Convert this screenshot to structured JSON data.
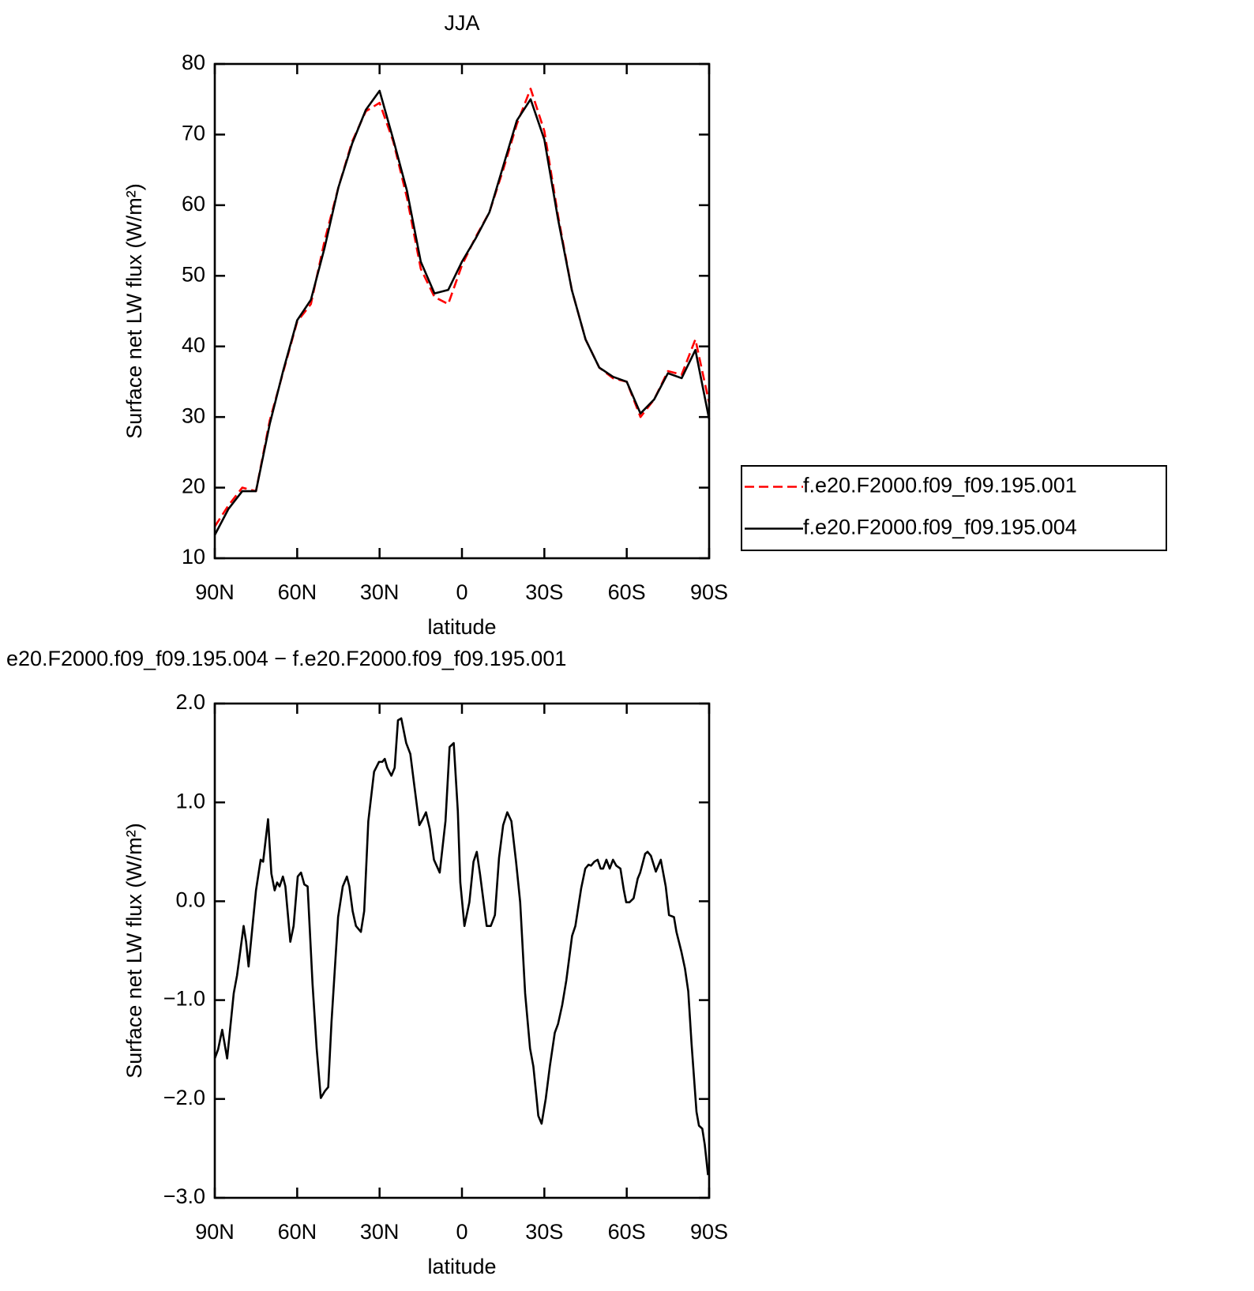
{
  "chart_data": [
    {
      "type": "line",
      "title": "JJA",
      "xlabel": "latitude",
      "ylabel": "Surface net LW flux (W/m²)",
      "x": [
        90,
        85,
        80,
        75,
        70,
        65,
        60,
        55,
        50,
        45,
        40,
        35,
        30,
        25,
        20,
        15,
        10,
        5,
        0,
        -5,
        -10,
        -15,
        -20,
        -25,
        -30,
        -35,
        -40,
        -45,
        -50,
        -55,
        -60,
        -65,
        -70,
        -75,
        -80,
        -85,
        -90
      ],
      "series": [
        {
          "name": "f.e20.F2000.f09_f09.195.001",
          "color": "#ff0000",
          "dashed": true,
          "values": [
            14.5,
            17.5,
            20,
            19.5,
            29.5,
            36.5,
            43.5,
            46,
            55,
            62.5,
            69,
            73.3,
            74.5,
            69,
            61,
            51,
            47,
            46,
            51.5,
            55.5,
            59,
            65,
            71.5,
            76.5,
            70.5,
            58.5,
            48,
            41,
            37,
            35.5,
            35,
            30,
            32.5,
            36.5,
            36,
            41,
            32
          ]
        },
        {
          "name": "f.e20.F2000.f09_f09.195.004",
          "color": "#000000",
          "dashed": false,
          "values": [
            13.3,
            17,
            19.5,
            19.5,
            29,
            36.7,
            43.7,
            46.6,
            54,
            62.5,
            68.7,
            73.5,
            76.2,
            69.3,
            62,
            52,
            47.5,
            48,
            52,
            55.3,
            59,
            65.5,
            72,
            75,
            69.3,
            58,
            48,
            41,
            37,
            35.7,
            35,
            30.5,
            32.5,
            36.2,
            35.5,
            39.5,
            29.7
          ]
        }
      ],
      "xlim": [
        90,
        -90
      ],
      "xticks": [
        {
          "value": 90,
          "label": "90N"
        },
        {
          "value": 60,
          "label": "60N"
        },
        {
          "value": 30,
          "label": "30N"
        },
        0,
        {
          "value": -30,
          "label": "30S"
        },
        {
          "value": -60,
          "label": "60S"
        },
        {
          "value": -90,
          "label": "90S"
        }
      ],
      "ylim": [
        10,
        80
      ],
      "yticks": [
        10,
        20,
        30,
        40,
        50,
        60,
        70,
        80
      ],
      "legend": "right"
    },
    {
      "type": "line",
      "title": "e20.F2000.f09_f09.195.004 − f.e20.F2000.f09_f09.195.001",
      "xlabel": "latitude",
      "ylabel": "Surface net LW flux (W/m²)",
      "color": "#000000",
      "x": [
        90,
        88.8,
        87.3,
        85.5,
        83.1,
        81.9,
        79.5,
        78.6,
        77.7,
        75,
        73.3,
        72.4,
        70.6,
        69.4,
        68.2,
        67.3,
        66.4,
        65.2,
        64.3,
        62.5,
        61.3,
        59.8,
        58.6,
        57.4,
        56.2,
        54.4,
        52.9,
        51.4,
        49.9,
        48.7,
        47.5,
        45.1,
        43.4,
        41.9,
        41,
        39.8,
        38.6,
        36.8,
        35.6,
        34.1,
        32,
        30.2,
        29,
        28.1,
        27.2,
        25.7,
        24.5,
        23.3,
        22.1,
        20.3,
        18.8,
        17.3,
        15.5,
        14.3,
        13.1,
        11.7,
        10.2,
        8.1,
        6,
        4.5,
        3,
        1.5,
        0.6,
        -0.9,
        -2.7,
        -4.2,
        -5.4,
        -6.6,
        -9,
        -10.5,
        -12,
        -13.5,
        -15,
        -16.5,
        -18,
        -19.7,
        -21.2,
        -23,
        -24.8,
        -26,
        -27.2,
        -27.8,
        -29,
        -30.5,
        -32,
        -33.8,
        -35,
        -36.5,
        -38,
        -40.1,
        -41.3,
        -43.4,
        -44.9,
        -46.1,
        -47,
        -48.2,
        -49.4,
        -50.5,
        -51.4,
        -52.6,
        -53.8,
        -55,
        -56.2,
        -57.7,
        -58.9,
        -59.8,
        -61,
        -62.5,
        -64,
        -64.9,
        -66.7,
        -67.6,
        -68.8,
        -70.6,
        -72.4,
        -74.2,
        -75.4,
        -77.2,
        -78.1,
        -79.9,
        -81.2,
        -82.4,
        -83.6,
        -85.4,
        -86.3,
        -87.5,
        -88.4,
        -89.6
      ],
      "values": [
        -1.59,
        -1.5,
        -1.3,
        -1.59,
        -0.93,
        -0.75,
        -0.25,
        -0.41,
        -0.66,
        0.11,
        0.42,
        0.4,
        0.83,
        0.28,
        0.11,
        0.19,
        0.15,
        0.25,
        0.15,
        -0.41,
        -0.25,
        0.25,
        0.29,
        0.17,
        0.15,
        -0.84,
        -1.49,
        -1.99,
        -1.92,
        -1.88,
        -1.22,
        -0.16,
        0.15,
        0.25,
        0.15,
        -0.1,
        -0.25,
        -0.31,
        -0.1,
        0.81,
        1.31,
        1.41,
        1.41,
        1.44,
        1.35,
        1.27,
        1.35,
        1.83,
        1.85,
        1.6,
        1.49,
        1.16,
        0.77,
        0.83,
        0.9,
        0.73,
        0.42,
        0.29,
        0.81,
        1.56,
        1.6,
        0.91,
        0.19,
        -0.25,
        -0.01,
        0.4,
        0.5,
        0.27,
        -0.25,
        -0.25,
        -0.14,
        0.44,
        0.77,
        0.9,
        0.81,
        0.4,
        -0.01,
        -0.93,
        -1.49,
        -1.67,
        -2,
        -2.17,
        -2.25,
        -2,
        -1.67,
        -1.33,
        -1.24,
        -1.05,
        -0.8,
        -0.35,
        -0.25,
        0.13,
        0.33,
        0.37,
        0.36,
        0.4,
        0.42,
        0.33,
        0.33,
        0.42,
        0.33,
        0.42,
        0.36,
        0.33,
        0.12,
        -0.01,
        -0.01,
        0.03,
        0.23,
        0.29,
        0.48,
        0.5,
        0.46,
        0.3,
        0.42,
        0.15,
        -0.14,
        -0.16,
        -0.31,
        -0.51,
        -0.68,
        -0.91,
        -1.44,
        -2.13,
        -2.27,
        -2.3,
        -2.46,
        -2.77
      ],
      "xlim": [
        90,
        -90
      ],
      "xticks": [
        {
          "value": 90,
          "label": "90N"
        },
        {
          "value": 60,
          "label": "60N"
        },
        {
          "value": 30,
          "label": "30N"
        },
        0,
        {
          "value": -30,
          "label": "30S"
        },
        {
          "value": -60,
          "label": "60S"
        },
        {
          "value": -90,
          "label": "90S"
        }
      ],
      "ylim": [
        -3,
        2
      ],
      "yticks": [
        {
          "value": -3,
          "label": "−3.0"
        },
        {
          "value": -2,
          "label": "−2.0"
        },
        {
          "value": -1,
          "label": "−1.0"
        },
        {
          "value": 0,
          "label": "0.0"
        },
        {
          "value": 1,
          "label": "1.0"
        },
        {
          "value": 2,
          "label": "2.0"
        }
      ]
    }
  ]
}
